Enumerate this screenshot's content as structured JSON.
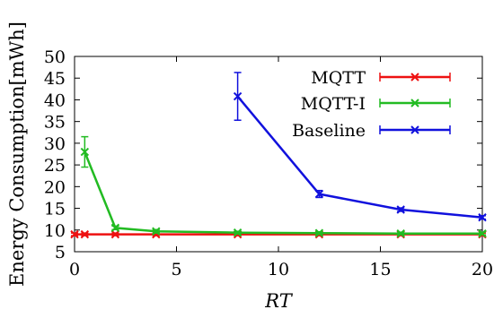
{
  "chart_data": {
    "type": "line",
    "xlabel": "RT",
    "ylabel": "Energy Consumption[mWh]",
    "xlim": [
      0,
      20
    ],
    "ylim": [
      5,
      50
    ],
    "x_ticks": [
      0,
      5,
      10,
      15,
      20
    ],
    "y_ticks": [
      5,
      10,
      15,
      20,
      25,
      30,
      35,
      40,
      45,
      50
    ],
    "grid": false,
    "legend_position": "top-right",
    "series": [
      {
        "name": "MQTT",
        "color": "#ee1111",
        "marker": "x",
        "x": [
          0,
          0.5,
          2,
          4,
          8,
          12,
          16,
          20
        ],
        "y": [
          9.0,
          9.0,
          9.0,
          9.0,
          9.0,
          9.0,
          9.0,
          9.0
        ],
        "err": [
          0.3,
          0.3,
          0.3,
          0.3,
          0.3,
          0.3,
          0.3,
          0.3
        ]
      },
      {
        "name": "MQTT-I",
        "color": "#22bb22",
        "marker": "x",
        "x": [
          0.5,
          2,
          4,
          8,
          12,
          16,
          20
        ],
        "y": [
          28.0,
          10.5,
          9.7,
          9.4,
          9.3,
          9.2,
          9.2
        ],
        "err": [
          3.5,
          0.4,
          0.4,
          0.3,
          0.3,
          0.3,
          0.3
        ]
      },
      {
        "name": "Baseline",
        "color": "#1111dd",
        "marker": "x",
        "x": [
          8,
          12,
          16,
          20
        ],
        "y": [
          40.8,
          18.3,
          14.7,
          12.9
        ],
        "err": [
          5.5,
          0.8,
          0.4,
          0.4
        ]
      }
    ]
  }
}
